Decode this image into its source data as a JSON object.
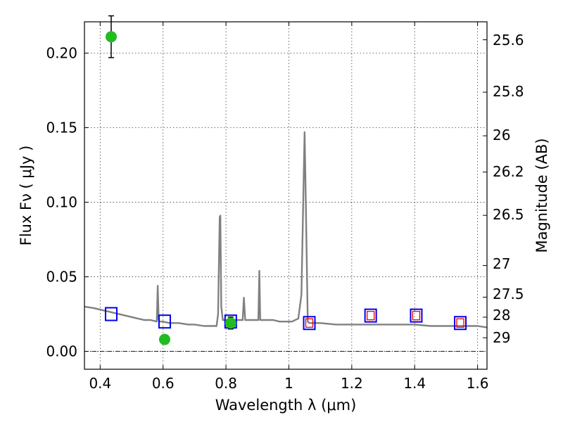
{
  "chart_data": {
    "type": "line",
    "xlabel": "Wavelength  λ (μm)",
    "ylabel": "Flux  Fν ( μJy )",
    "y2label": "Magnitude (AB)",
    "xlim": [
      0.35,
      1.63
    ],
    "ylim": [
      -0.012,
      0.221
    ],
    "grid": true,
    "x_ticks": [
      0.4,
      0.6,
      0.8,
      1.0,
      1.2,
      1.4,
      1.6
    ],
    "x_tick_labels": [
      "0.4",
      "0.6",
      "0.8",
      "1",
      "1.2",
      "1.4",
      "1.6"
    ],
    "y_ticks": [
      0.0,
      0.05,
      0.1,
      0.15,
      0.2
    ],
    "y_tick_labels": [
      "0.00",
      "0.05",
      "0.10",
      "0.15",
      "0.20"
    ],
    "y2_tick_labels": [
      "25.6",
      "25.8",
      "26",
      "26.2",
      "26.5",
      "27",
      "27.5",
      "28",
      "29"
    ],
    "colors": {
      "model": "#808080",
      "observed": "#22bb22",
      "model_box": "#0000ee",
      "ir_box": "#ee0000",
      "zero_line": "#000000"
    },
    "series": [
      {
        "name": "model spectrum",
        "x": [
          0.35,
          0.38,
          0.4,
          0.42,
          0.44,
          0.46,
          0.48,
          0.5,
          0.52,
          0.54,
          0.56,
          0.58,
          0.583,
          0.586,
          0.589,
          0.6,
          0.62,
          0.65,
          0.68,
          0.7,
          0.73,
          0.75,
          0.77,
          0.775,
          0.78,
          0.782,
          0.785,
          0.79,
          0.8,
          0.82,
          0.84,
          0.853,
          0.857,
          0.861,
          0.87,
          0.89,
          0.903,
          0.906,
          0.909,
          0.93,
          0.95,
          0.97,
          0.99,
          1.01,
          1.03,
          1.04,
          1.05,
          1.053,
          1.06,
          1.065,
          1.08,
          1.1,
          1.15,
          1.2,
          1.25,
          1.3,
          1.35,
          1.4,
          1.45,
          1.5,
          1.55,
          1.6,
          1.63
        ],
        "y": [
          0.03,
          0.029,
          0.028,
          0.027,
          0.026,
          0.025,
          0.024,
          0.023,
          0.022,
          0.021,
          0.021,
          0.02,
          0.044,
          0.021,
          0.02,
          0.02,
          0.019,
          0.019,
          0.018,
          0.018,
          0.017,
          0.017,
          0.017,
          0.025,
          0.09,
          0.091,
          0.03,
          0.021,
          0.021,
          0.021,
          0.021,
          0.021,
          0.036,
          0.021,
          0.021,
          0.021,
          0.021,
          0.054,
          0.021,
          0.021,
          0.021,
          0.02,
          0.02,
          0.02,
          0.022,
          0.038,
          0.147,
          0.11,
          0.02,
          0.019,
          0.019,
          0.019,
          0.018,
          0.018,
          0.018,
          0.018,
          0.018,
          0.018,
          0.017,
          0.017,
          0.017,
          0.017,
          0.016
        ]
      },
      {
        "name": "observed photometry",
        "x": [
          0.435,
          0.605,
          0.815
        ],
        "y": [
          0.211,
          0.008,
          0.019
        ],
        "err": [
          0.014,
          0.003,
          0.004
        ]
      },
      {
        "name": "model photometry (optical)",
        "x": [
          0.435,
          0.605,
          0.815
        ],
        "y": [
          0.025,
          0.02,
          0.02
        ]
      },
      {
        "name": "model photometry (IR)",
        "x": [
          1.065,
          1.26,
          1.405,
          1.545
        ],
        "y": [
          0.019,
          0.024,
          0.024,
          0.019
        ]
      }
    ]
  }
}
